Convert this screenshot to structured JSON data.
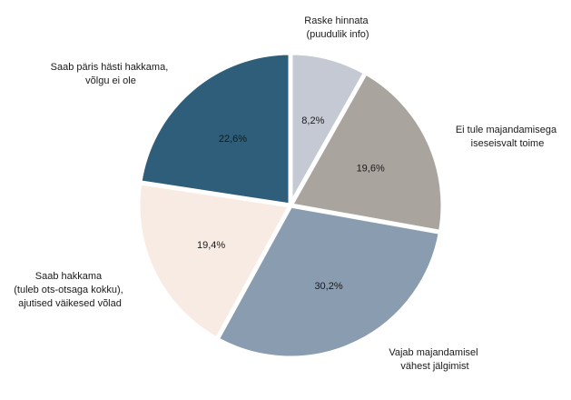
{
  "chart_data": {
    "type": "pie",
    "start_angle_deg": 0,
    "direction": "clockwise",
    "slices": [
      {
        "label_lines": [
          "Raske hinnata",
          "(puudulik info)"
        ],
        "value": 8.2,
        "value_label": "8,2%",
        "color": "#c4c9d4",
        "text_color": "#1a1a1a"
      },
      {
        "label_lines": [
          "Ei tule majandamisega",
          "iseseisvalt toime"
        ],
        "value": 19.6,
        "value_label": "19,6%",
        "color": "#aaa49f",
        "text_color": "#1a1a1a"
      },
      {
        "label_lines": [
          "Vajab majandamisel",
          "vähest jälgimist"
        ],
        "value": 30.2,
        "value_label": "30,2%",
        "color": "#8a9caf",
        "text_color": "#1a1a1a"
      },
      {
        "label_lines": [
          "Saab hakkama",
          "(tuleb ots-otsaga kokku),",
          "ajutised väikesed võlad"
        ],
        "value": 19.4,
        "value_label": "19,4%",
        "color": "#f8ebe3",
        "text_color": "#1a1a1a"
      },
      {
        "label_lines": [
          "Saab päris hästi hakkama,",
          "võlgu ei ole"
        ],
        "value": 22.6,
        "value_label": "22,6%",
        "color": "#2e5e79",
        "text_color": "#1a1a1a"
      }
    ],
    "separator_color": "#ffffff"
  }
}
